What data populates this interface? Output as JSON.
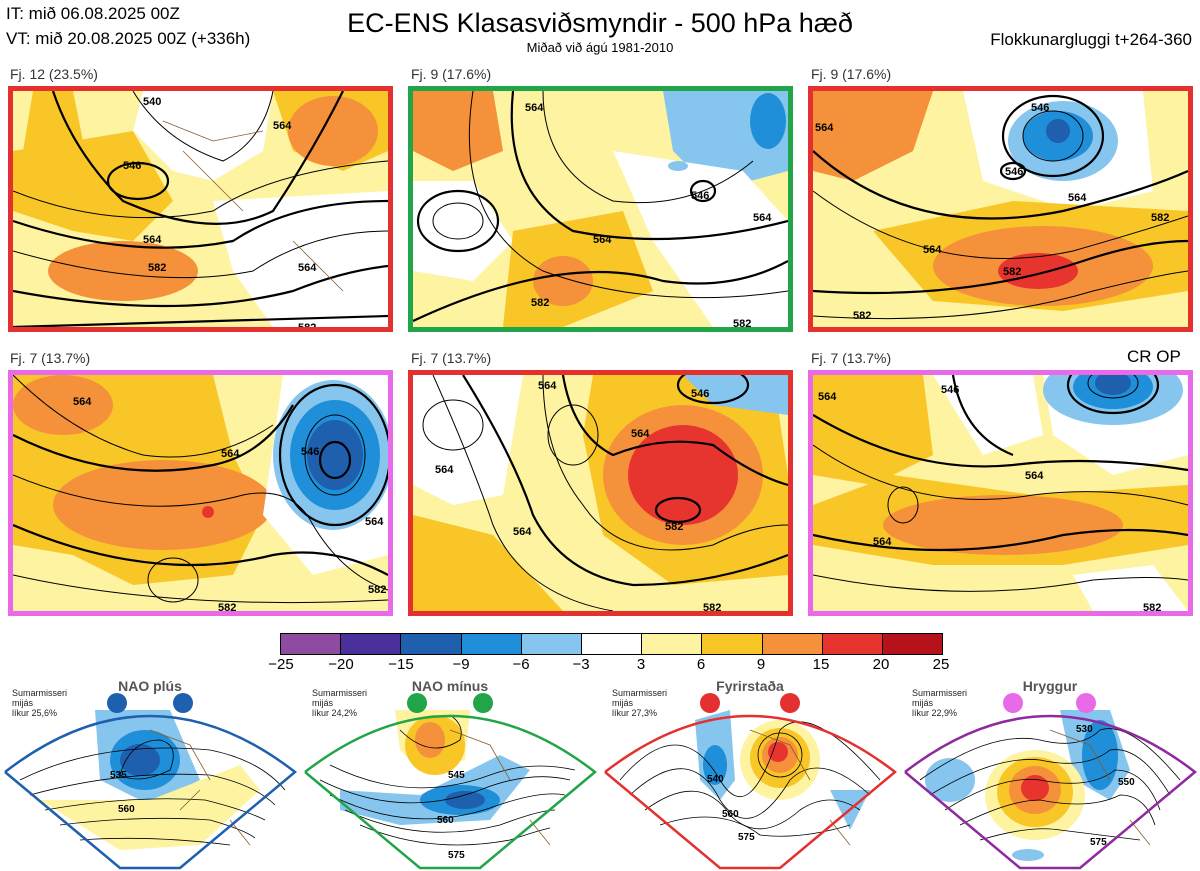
{
  "header": {
    "it_line": "IT: mið 06.08.2025 00Z",
    "vt_line": "VT: mið 20.08.2025 00Z  (+336h)",
    "title": "EC-ENS Klasasviðsmyndir - 500 hPa hæð",
    "subtitle": "Miðað við ágú 1981-2010",
    "window_label": "Flokkunargluggi t+264-360"
  },
  "panels": [
    {
      "label": "Fj. 12 (23.5%)",
      "border_color": "#e53030",
      "contour_labels": [
        "540",
        "546",
        "564",
        "564",
        "582",
        "582",
        "564"
      ]
    },
    {
      "label": "Fj. 9 (17.6%)",
      "border_color": "#22a548",
      "contour_labels": [
        "564",
        "564",
        "582",
        "546",
        "564",
        "582"
      ]
    },
    {
      "label": "Fj. 9 (17.6%)",
      "border_color": "#e53030",
      "contour_labels": [
        "546",
        "564",
        "546",
        "564",
        "582",
        "564",
        "582",
        "582"
      ]
    },
    {
      "label": "Fj. 7 (13.7%)",
      "border_color": "#e86ae8",
      "contour_labels": [
        "564",
        "564",
        "546",
        "564",
        "582",
        "582"
      ]
    },
    {
      "label": "Fj. 7 (13.7%)",
      "border_color": "#e53030",
      "contour_labels": [
        "564",
        "564",
        "564",
        "546",
        "564",
        "582",
        "582"
      ]
    },
    {
      "label": "Fj. 7 (13.7%)",
      "border_color": "#e86ae8",
      "contour_labels": [
        "546",
        "564",
        "564",
        "564",
        "582"
      ]
    }
  ],
  "cr_op_label": "CR OP",
  "colorbar": {
    "ticks": [
      "−25",
      "−20",
      "−15",
      "−9",
      "−6",
      "−3",
      "3",
      "6",
      "9",
      "15",
      "20",
      "25"
    ],
    "colors": [
      "#8e4ba0",
      "#4b2f9a",
      "#1e5fae",
      "#1e8fd8",
      "#86c6ee",
      "#ffffff",
      "#fdf3a0",
      "#f9c628",
      "#f4913a",
      "#e8342e",
      "#b5121c"
    ]
  },
  "regimes": [
    {
      "name": "NAO plús",
      "note": [
        "Sumarmisseri",
        "mijás",
        "líkur 25,6%"
      ],
      "color": "#1e5fae",
      "contour_labels": [
        "535",
        "560"
      ]
    },
    {
      "name": "NAO mínus",
      "note": [
        "Sumarmisseri",
        "mijás",
        "líkur 24,2%"
      ],
      "color": "#22a548",
      "contour_labels": [
        "545",
        "560",
        "575"
      ]
    },
    {
      "name": "Fyrirstaða",
      "note": [
        "Sumarmisseri",
        "mijás",
        "líkur 27,3%"
      ],
      "color": "#e53030",
      "contour_labels": [
        "540",
        "560",
        "575"
      ]
    },
    {
      "name": "Hryggur",
      "note": [
        "Sumarmisseri",
        "mijás",
        "líkur 22,9%"
      ],
      "color": "#8e2a9e",
      "contour_labels": [
        "530",
        "550",
        "575"
      ]
    }
  ]
}
